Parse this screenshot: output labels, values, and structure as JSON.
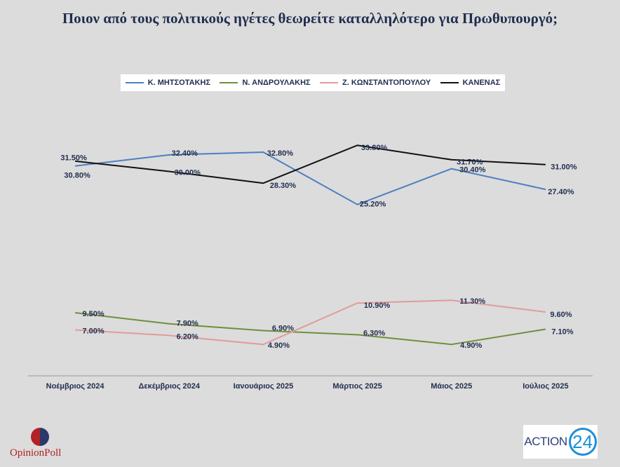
{
  "chart_data": {
    "type": "line",
    "title": "Ποιον από τους πολιτικούς ηγέτες θεωρείτε καταλληλότερο για Πρωθυπουργό;",
    "categories": [
      "Νοέμβριος 2024",
      "Δεκέμβριος  2024",
      "Ιανουάριος 2025",
      "Μάρτιος 2025",
      "Μάιος 2025",
      "Ιούλιος 2025"
    ],
    "ylim": [
      0,
      40
    ],
    "grid": false,
    "legend_position": "top",
    "series": [
      {
        "name": "Κ. ΜΗΤΣΟΤΑΚΗΣ",
        "color": "#4e7fbf",
        "values": [
          30.8,
          32.4,
          32.8,
          25.2,
          30.4,
          27.4
        ],
        "labels": [
          "30.80%",
          "32.40%",
          "32.80%",
          "25.20%",
          "30.40%",
          "27.40%"
        ]
      },
      {
        "name": "Ν. ΑΝΔΡΟΥΛΑΚΗΣ",
        "color": "#6f8f3c",
        "values": [
          9.5,
          7.9,
          6.9,
          6.3,
          4.9,
          7.1
        ],
        "labels": [
          "9.50%",
          "7.90%",
          "6.90%",
          "6.30%",
          "4.90%",
          "7.10%"
        ]
      },
      {
        "name": "Ζ. ΚΩΝΣΤΑΝΤΟΠΟΥΛΟΥ",
        "color": "#e19b9b",
        "values": [
          7.0,
          6.2,
          4.9,
          10.9,
          11.3,
          9.6
        ],
        "labels": [
          "7.00%",
          "6.20%",
          "4.90%",
          "10.90%",
          "11.30%",
          "9.60%"
        ]
      },
      {
        "name": "ΚΑΝΕΝΑΣ",
        "color": "#111111",
        "values": [
          31.5,
          30.0,
          28.3,
          33.8,
          31.7,
          31.0
        ],
        "labels": [
          "31.50%",
          "30.00%",
          "28.30%",
          "33.80%",
          "31.70%",
          "31.00%"
        ]
      }
    ]
  },
  "logos": {
    "opinion_poll": "OpinionPoll",
    "action_word": "ACTION",
    "action_num": "24"
  }
}
